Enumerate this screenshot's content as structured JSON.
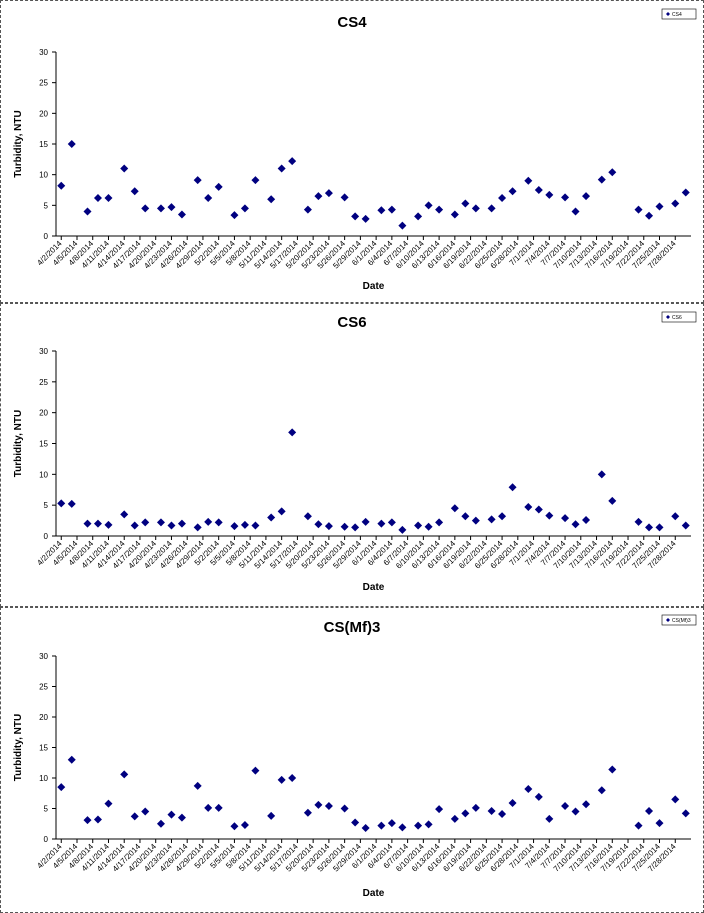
{
  "chart_data": [
    {
      "type": "scatter",
      "title": "CS4",
      "xlabel": "Date",
      "ylabel": "Turbidity, NTU",
      "ylim": [
        0,
        30
      ],
      "yticks": [
        0,
        5,
        10,
        15,
        20,
        25,
        30
      ],
      "xticks": [
        "4/2/2014",
        "4/5/2014",
        "4/8/2014",
        "4/11/2014",
        "4/14/2014",
        "4/17/2014",
        "4/20/2014",
        "4/23/2014",
        "4/26/2014",
        "4/29/2014",
        "5/2/2014",
        "5/5/2014",
        "5/8/2014",
        "5/11/2014",
        "5/14/2014",
        "5/17/2014",
        "5/20/2014",
        "5/23/2014",
        "5/26/2014",
        "5/29/2014",
        "6/1/2014",
        "6/4/2014",
        "6/7/2014",
        "6/10/2014",
        "6/13/2014",
        "6/16/2014",
        "6/19/2014",
        "6/22/2014",
        "6/25/2014",
        "6/28/2014",
        "7/1/2014",
        "7/4/2014",
        "7/7/2014",
        "7/10/2014",
        "7/13/2014",
        "7/16/2014",
        "7/19/2014",
        "7/22/2014",
        "7/25/2014",
        "7/28/2014"
      ],
      "legend": "top-right",
      "series": [
        {
          "name": "CS4",
          "color": "#000080",
          "points": [
            {
              "x": "4/2/2014",
              "y": 8.2
            },
            {
              "x": "4/4/2014",
              "y": 15.0
            },
            {
              "x": "4/7/2014",
              "y": 4.0
            },
            {
              "x": "4/9/2014",
              "y": 6.2
            },
            {
              "x": "4/11/2014",
              "y": 6.2
            },
            {
              "x": "4/14/2014",
              "y": 11.0
            },
            {
              "x": "4/16/2014",
              "y": 7.3
            },
            {
              "x": "4/18/2014",
              "y": 4.5
            },
            {
              "x": "4/21/2014",
              "y": 4.5
            },
            {
              "x": "4/23/2014",
              "y": 4.7
            },
            {
              "x": "4/25/2014",
              "y": 3.5
            },
            {
              "x": "4/28/2014",
              "y": 9.1
            },
            {
              "x": "4/30/2014",
              "y": 6.2
            },
            {
              "x": "5/2/2014",
              "y": 8.0
            },
            {
              "x": "5/5/2014",
              "y": 3.4
            },
            {
              "x": "5/7/2014",
              "y": 4.5
            },
            {
              "x": "5/9/2014",
              "y": 9.1
            },
            {
              "x": "5/12/2014",
              "y": 6.0
            },
            {
              "x": "5/14/2014",
              "y": 11.0
            },
            {
              "x": "5/16/2014",
              "y": 12.2
            },
            {
              "x": "5/19/2014",
              "y": 4.3
            },
            {
              "x": "5/21/2014",
              "y": 6.5
            },
            {
              "x": "5/23/2014",
              "y": 7.0
            },
            {
              "x": "5/26/2014",
              "y": 6.3
            },
            {
              "x": "5/28/2014",
              "y": 3.2
            },
            {
              "x": "5/30/2014",
              "y": 2.8
            },
            {
              "x": "6/2/2014",
              "y": 4.2
            },
            {
              "x": "6/4/2014",
              "y": 4.3
            },
            {
              "x": "6/6/2014",
              "y": 1.7
            },
            {
              "x": "6/9/2014",
              "y": 3.2
            },
            {
              "x": "6/11/2014",
              "y": 5.0
            },
            {
              "x": "6/13/2014",
              "y": 4.3
            },
            {
              "x": "6/16/2014",
              "y": 3.5
            },
            {
              "x": "6/18/2014",
              "y": 5.3
            },
            {
              "x": "6/20/2014",
              "y": 4.5
            },
            {
              "x": "6/23/2014",
              "y": 4.5
            },
            {
              "x": "6/25/2014",
              "y": 6.2
            },
            {
              "x": "6/27/2014",
              "y": 7.3
            },
            {
              "x": "6/30/2014",
              "y": 9.0
            },
            {
              "x": "7/2/2014",
              "y": 7.5
            },
            {
              "x": "7/4/2014",
              "y": 6.7
            },
            {
              "x": "7/7/2014",
              "y": 6.3
            },
            {
              "x": "7/9/2014",
              "y": 4.0
            },
            {
              "x": "7/11/2014",
              "y": 6.5
            },
            {
              "x": "7/14/2014",
              "y": 9.2
            },
            {
              "x": "7/16/2014",
              "y": 10.4
            },
            {
              "x": "7/21/2014",
              "y": 4.3
            },
            {
              "x": "7/23/2014",
              "y": 3.3
            },
            {
              "x": "7/25/2014",
              "y": 4.8
            },
            {
              "x": "7/28/2014",
              "y": 5.3
            },
            {
              "x": "7/30/2014",
              "y": 7.1
            }
          ]
        }
      ]
    },
    {
      "type": "scatter",
      "title": "CS6",
      "xlabel": "Date",
      "ylabel": "Turbidity, NTU",
      "ylim": [
        0,
        30
      ],
      "yticks": [
        0,
        5,
        10,
        15,
        20,
        25,
        30
      ],
      "xticks": [
        "4/2/2014",
        "4/5/2014",
        "4/8/2014",
        "4/11/2014",
        "4/14/2014",
        "4/17/2014",
        "4/20/2014",
        "4/23/2014",
        "4/26/2014",
        "4/29/2014",
        "5/2/2014",
        "5/5/2014",
        "5/8/2014",
        "5/11/2014",
        "5/14/2014",
        "5/17/2014",
        "5/20/2014",
        "5/23/2014",
        "5/26/2014",
        "5/29/2014",
        "6/1/2014",
        "6/4/2014",
        "6/7/2014",
        "6/10/2014",
        "6/13/2014",
        "6/16/2014",
        "6/19/2014",
        "6/22/2014",
        "6/25/2014",
        "6/28/2014",
        "7/1/2014",
        "7/4/2014",
        "7/7/2014",
        "7/10/2014",
        "7/13/2014",
        "7/16/2014",
        "7/19/2014",
        "7/22/2014",
        "7/25/2014",
        "7/28/2014"
      ],
      "legend": "top-right",
      "series": [
        {
          "name": "CS6",
          "color": "#000080",
          "points": [
            {
              "x": "4/2/2014",
              "y": 5.3
            },
            {
              "x": "4/4/2014",
              "y": 5.2
            },
            {
              "x": "4/7/2014",
              "y": 2.0
            },
            {
              "x": "4/9/2014",
              "y": 2.0
            },
            {
              "x": "4/11/2014",
              "y": 1.8
            },
            {
              "x": "4/14/2014",
              "y": 3.5
            },
            {
              "x": "4/16/2014",
              "y": 1.7
            },
            {
              "x": "4/18/2014",
              "y": 2.2
            },
            {
              "x": "4/21/2014",
              "y": 2.2
            },
            {
              "x": "4/23/2014",
              "y": 1.7
            },
            {
              "x": "4/25/2014",
              "y": 2.0
            },
            {
              "x": "4/28/2014",
              "y": 1.4
            },
            {
              "x": "4/30/2014",
              "y": 2.3
            },
            {
              "x": "5/2/2014",
              "y": 2.2
            },
            {
              "x": "5/5/2014",
              "y": 1.6
            },
            {
              "x": "5/7/2014",
              "y": 1.8
            },
            {
              "x": "5/9/2014",
              "y": 1.7
            },
            {
              "x": "5/12/2014",
              "y": 3.0
            },
            {
              "x": "5/14/2014",
              "y": 4.0
            },
            {
              "x": "5/16/2014",
              "y": 16.8
            },
            {
              "x": "5/19/2014",
              "y": 3.2
            },
            {
              "x": "5/21/2014",
              "y": 1.9
            },
            {
              "x": "5/23/2014",
              "y": 1.6
            },
            {
              "x": "5/26/2014",
              "y": 1.5
            },
            {
              "x": "5/28/2014",
              "y": 1.4
            },
            {
              "x": "5/30/2014",
              "y": 2.3
            },
            {
              "x": "6/2/2014",
              "y": 2.0
            },
            {
              "x": "6/4/2014",
              "y": 2.2
            },
            {
              "x": "6/6/2014",
              "y": 1.0
            },
            {
              "x": "6/9/2014",
              "y": 1.7
            },
            {
              "x": "6/11/2014",
              "y": 1.5
            },
            {
              "x": "6/13/2014",
              "y": 2.2
            },
            {
              "x": "6/16/2014",
              "y": 4.5
            },
            {
              "x": "6/18/2014",
              "y": 3.2
            },
            {
              "x": "6/20/2014",
              "y": 2.5
            },
            {
              "x": "6/23/2014",
              "y": 2.7
            },
            {
              "x": "6/25/2014",
              "y": 3.2
            },
            {
              "x": "6/27/2014",
              "y": 7.9
            },
            {
              "x": "6/30/2014",
              "y": 4.7
            },
            {
              "x": "7/2/2014",
              "y": 4.3
            },
            {
              "x": "7/4/2014",
              "y": 3.3
            },
            {
              "x": "7/7/2014",
              "y": 2.9
            },
            {
              "x": "7/9/2014",
              "y": 1.9
            },
            {
              "x": "7/11/2014",
              "y": 2.6
            },
            {
              "x": "7/14/2014",
              "y": 10.0
            },
            {
              "x": "7/16/2014",
              "y": 5.7
            },
            {
              "x": "7/21/2014",
              "y": 2.3
            },
            {
              "x": "7/23/2014",
              "y": 1.4
            },
            {
              "x": "7/25/2014",
              "y": 1.4
            },
            {
              "x": "7/28/2014",
              "y": 3.2
            },
            {
              "x": "7/30/2014",
              "y": 1.7
            }
          ]
        }
      ]
    },
    {
      "type": "scatter",
      "title": "CS(Mf)3",
      "xlabel": "Date",
      "ylabel": "Turbidity, NTU",
      "ylim": [
        0,
        30
      ],
      "yticks": [
        0,
        5,
        10,
        15,
        20,
        25,
        30
      ],
      "xticks": [
        "4/2/2014",
        "4/5/2014",
        "4/8/2014",
        "4/11/2014",
        "4/14/2014",
        "4/17/2014",
        "4/20/2014",
        "4/23/2014",
        "4/26/2014",
        "4/29/2014",
        "5/2/2014",
        "5/5/2014",
        "5/8/2014",
        "5/11/2014",
        "5/14/2014",
        "5/17/2014",
        "5/20/2014",
        "5/23/2014",
        "5/26/2014",
        "5/29/2014",
        "6/1/2014",
        "6/4/2014",
        "6/7/2014",
        "6/10/2014",
        "6/13/2014",
        "6/16/2014",
        "6/19/2014",
        "6/22/2014",
        "6/25/2014",
        "6/28/2014",
        "7/1/2014",
        "7/4/2014",
        "7/7/2014",
        "7/10/2014",
        "7/13/2014",
        "7/16/2014",
        "7/19/2014",
        "7/22/2014",
        "7/25/2014",
        "7/28/2014"
      ],
      "legend": "top-right",
      "series": [
        {
          "name": "CS(Mf)3",
          "color": "#000080",
          "points": [
            {
              "x": "4/2/2014",
              "y": 8.5
            },
            {
              "x": "4/4/2014",
              "y": 13.0
            },
            {
              "x": "4/7/2014",
              "y": 3.1
            },
            {
              "x": "4/9/2014",
              "y": 3.2
            },
            {
              "x": "4/11/2014",
              "y": 5.8
            },
            {
              "x": "4/14/2014",
              "y": 10.6
            },
            {
              "x": "4/16/2014",
              "y": 3.7
            },
            {
              "x": "4/18/2014",
              "y": 4.5
            },
            {
              "x": "4/21/2014",
              "y": 2.5
            },
            {
              "x": "4/23/2014",
              "y": 4.0
            },
            {
              "x": "4/25/2014",
              "y": 3.5
            },
            {
              "x": "4/28/2014",
              "y": 8.7
            },
            {
              "x": "4/30/2014",
              "y": 5.1
            },
            {
              "x": "5/2/2014",
              "y": 5.1
            },
            {
              "x": "5/5/2014",
              "y": 2.1
            },
            {
              "x": "5/7/2014",
              "y": 2.3
            },
            {
              "x": "5/9/2014",
              "y": 11.2
            },
            {
              "x": "5/12/2014",
              "y": 3.8
            },
            {
              "x": "5/14/2014",
              "y": 9.7
            },
            {
              "x": "5/16/2014",
              "y": 10.0
            },
            {
              "x": "5/19/2014",
              "y": 4.3
            },
            {
              "x": "5/21/2014",
              "y": 5.6
            },
            {
              "x": "5/23/2014",
              "y": 5.4
            },
            {
              "x": "5/26/2014",
              "y": 5.0
            },
            {
              "x": "5/28/2014",
              "y": 2.7
            },
            {
              "x": "5/30/2014",
              "y": 1.8
            },
            {
              "x": "6/2/2014",
              "y": 2.2
            },
            {
              "x": "6/4/2014",
              "y": 2.6
            },
            {
              "x": "6/6/2014",
              "y": 1.9
            },
            {
              "x": "6/9/2014",
              "y": 2.2
            },
            {
              "x": "6/11/2014",
              "y": 2.4
            },
            {
              "x": "6/13/2014",
              "y": 4.9
            },
            {
              "x": "6/16/2014",
              "y": 3.3
            },
            {
              "x": "6/18/2014",
              "y": 4.2
            },
            {
              "x": "6/20/2014",
              "y": 5.1
            },
            {
              "x": "6/23/2014",
              "y": 4.6
            },
            {
              "x": "6/25/2014",
              "y": 4.1
            },
            {
              "x": "6/27/2014",
              "y": 5.9
            },
            {
              "x": "6/30/2014",
              "y": 8.2
            },
            {
              "x": "7/2/2014",
              "y": 6.9
            },
            {
              "x": "7/4/2014",
              "y": 3.3
            },
            {
              "x": "7/7/2014",
              "y": 5.4
            },
            {
              "x": "7/9/2014",
              "y": 4.5
            },
            {
              "x": "7/11/2014",
              "y": 5.7
            },
            {
              "x": "7/14/2014",
              "y": 8.0
            },
            {
              "x": "7/16/2014",
              "y": 11.4
            },
            {
              "x": "7/21/2014",
              "y": 2.2
            },
            {
              "x": "7/23/2014",
              "y": 4.6
            },
            {
              "x": "7/25/2014",
              "y": 2.6
            },
            {
              "x": "7/28/2014",
              "y": 6.5
            },
            {
              "x": "7/30/2014",
              "y": 4.2
            }
          ]
        }
      ]
    }
  ]
}
